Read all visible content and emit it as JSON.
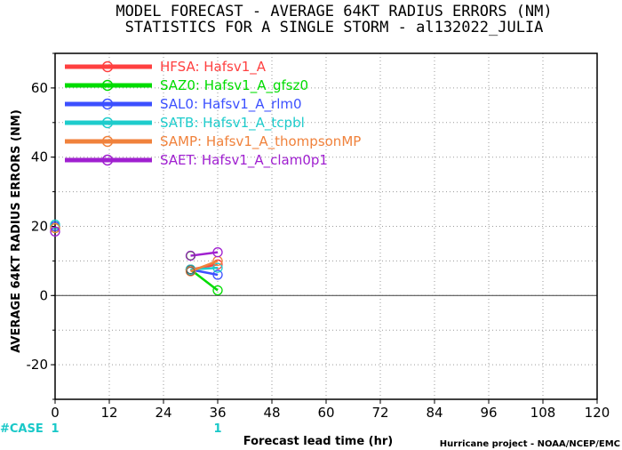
{
  "chart_data": {
    "type": "line",
    "title": "MODEL FORECAST - AVERAGE 64KT RADIUS ERRORS (NM)",
    "subtitle": "STATISTICS FOR A SINGLE STORM - al132022_JULIA",
    "xlabel": "Forecast lead time (hr)",
    "ylabel": "AVERAGE 64KT RADIUS ERRORS (NM)",
    "xlim": [
      0,
      120
    ],
    "ylim": [
      -30,
      70
    ],
    "x_ticks": [
      0,
      12,
      24,
      36,
      48,
      60,
      72,
      84,
      96,
      108,
      120
    ],
    "y_ticks": [
      -20,
      0,
      20,
      40,
      60
    ],
    "grid": true,
    "legend_position": "top-left",
    "series": [
      {
        "name": "HFSA:  Hafsv1_A",
        "color": "#ff4040",
        "points": [
          [
            0,
            20
          ],
          [
            30,
            7.5
          ],
          [
            36,
            9
          ]
        ]
      },
      {
        "name": "SAZ0:  Hafsv1_A_gfsz0",
        "color": "#00dc00",
        "points": [
          [
            0,
            19.5
          ],
          [
            30,
            7.5
          ],
          [
            36,
            1.5
          ]
        ]
      },
      {
        "name": "SAL0:  Hafsv1_A_rlm0",
        "color": "#3c50ff",
        "points": [
          [
            0,
            20
          ],
          [
            30,
            7.5
          ],
          [
            36,
            6
          ]
        ]
      },
      {
        "name": "SATB:  Hafsv1_A_tcpbl",
        "color": "#1ecccc",
        "points": [
          [
            0,
            20.5
          ],
          [
            30,
            7.5
          ],
          [
            36,
            8
          ]
        ]
      },
      {
        "name": "SAMP:  Hafsv1_A_thompsonMP",
        "color": "#f0823c",
        "points": [
          [
            0,
            19.5
          ],
          [
            30,
            7
          ],
          [
            36,
            10
          ]
        ]
      },
      {
        "name": "SAET:  Hafsv1_A_clam0p1",
        "color": "#a020d0",
        "points": [
          [
            0,
            18.5
          ],
          [
            30,
            11.5
          ],
          [
            36,
            12.5
          ]
        ]
      }
    ],
    "case_label": "#CASE",
    "case_counts": [
      {
        "x": 0,
        "count": "1"
      },
      {
        "x": 36,
        "count": "1"
      }
    ]
  },
  "credit": "Hurricane project - NOAA/NCEP/EMC"
}
